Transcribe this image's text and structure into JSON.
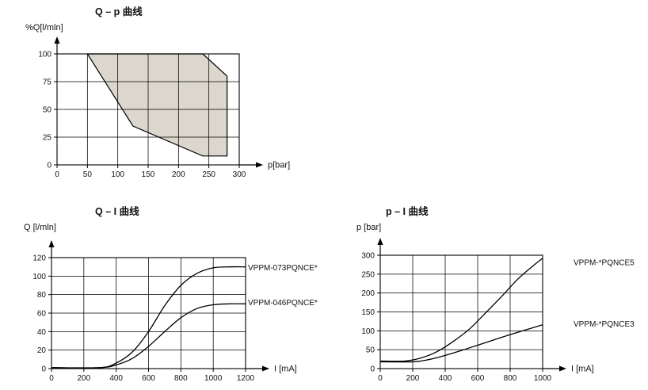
{
  "chart_data": [
    {
      "id": "qp",
      "type": "area",
      "title": "Q – p 曲线",
      "xlabel": "p[bar]",
      "ylabel": "%Q[l/mln]",
      "xlim": [
        0,
        300
      ],
      "ylim": [
        0,
        100
      ],
      "xticks": [
        0,
        50,
        100,
        150,
        200,
        250,
        300
      ],
      "yticks": [
        0,
        25,
        50,
        75,
        100
      ],
      "grid": true,
      "envelope_fill": "#dbd7cd",
      "envelope": [
        [
          50,
          100
        ],
        [
          240,
          100
        ],
        [
          280,
          80
        ],
        [
          280,
          8
        ],
        [
          240,
          8
        ],
        [
          125,
          35
        ]
      ]
    },
    {
      "id": "qi",
      "type": "line",
      "title": "Q – I 曲线",
      "xlabel": "I [mA]",
      "ylabel": "Q [l/mln]",
      "xlim": [
        0,
        1200
      ],
      "ylim": [
        0,
        120
      ],
      "xticks": [
        0,
        200,
        400,
        600,
        800,
        1000,
        1200
      ],
      "yticks": [
        0,
        20,
        40,
        60,
        80,
        100,
        120
      ],
      "grid": true,
      "legend_position": "right-of-curve-end",
      "series": [
        {
          "name": "VPPM-073PQNCE*",
          "label_y": 109,
          "points": [
            [
              0,
              1
            ],
            [
              300,
              1
            ],
            [
              400,
              6
            ],
            [
              500,
              18
            ],
            [
              600,
              40
            ],
            [
              700,
              68
            ],
            [
              800,
              90
            ],
            [
              900,
              103
            ],
            [
              1000,
              109
            ],
            [
              1100,
              110
            ],
            [
              1200,
              110
            ]
          ]
        },
        {
          "name": "VPPM-046PQNCE*",
          "label_y": 71,
          "points": [
            [
              0,
              1
            ],
            [
              300,
              1
            ],
            [
              400,
              4
            ],
            [
              500,
              11
            ],
            [
              600,
              24
            ],
            [
              700,
              40
            ],
            [
              800,
              55
            ],
            [
              900,
              65
            ],
            [
              1000,
              69
            ],
            [
              1100,
              70
            ],
            [
              1200,
              70
            ]
          ]
        }
      ]
    },
    {
      "id": "pi",
      "type": "line",
      "title": "p – I 曲线",
      "xlabel": "I [mA]",
      "ylabel": "p [bar]",
      "xlim": [
        0,
        1000
      ],
      "ylim": [
        0,
        300
      ],
      "xticks": [
        0,
        200,
        400,
        600,
        800,
        1000
      ],
      "yticks": [
        0,
        50,
        100,
        150,
        200,
        250,
        300
      ],
      "grid": true,
      "legend_position": "right-of-curve-end",
      "series": [
        {
          "name": "VPPM-*PQNCE5",
          "label_y": 280,
          "points": [
            [
              0,
              20
            ],
            [
              150,
              20
            ],
            [
              250,
              28
            ],
            [
              350,
              45
            ],
            [
              450,
              72
            ],
            [
              550,
              105
            ],
            [
              650,
              148
            ],
            [
              750,
              192
            ],
            [
              850,
              238
            ],
            [
              950,
              275
            ],
            [
              1000,
              292
            ]
          ]
        },
        {
          "name": "VPPM-*PQNCE3",
          "label_y": 117,
          "points": [
            [
              0,
              18
            ],
            [
              200,
              18
            ],
            [
              300,
              24
            ],
            [
              400,
              35
            ],
            [
              500,
              48
            ],
            [
              600,
              62
            ],
            [
              700,
              76
            ],
            [
              800,
              90
            ],
            [
              900,
              103
            ],
            [
              1000,
              116
            ]
          ]
        }
      ]
    }
  ]
}
